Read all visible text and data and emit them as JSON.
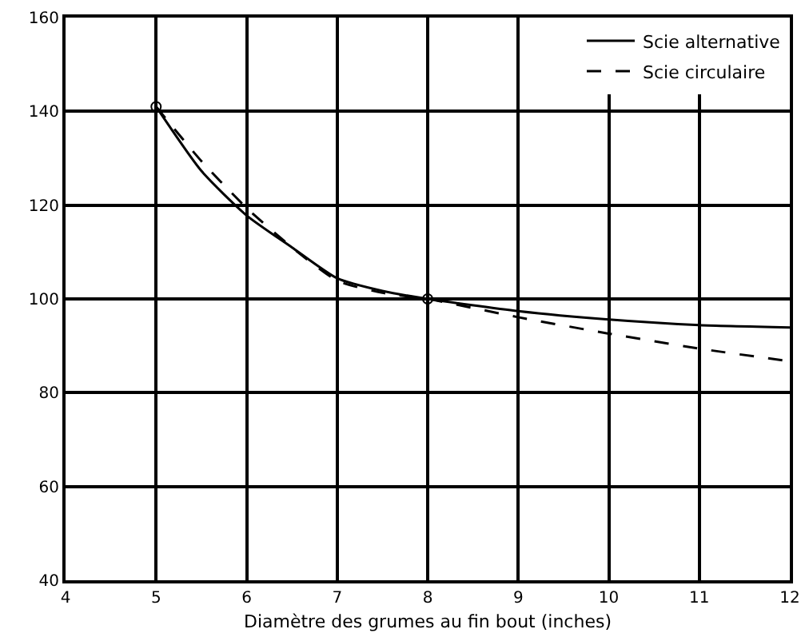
{
  "chart_data": {
    "type": "line",
    "xlabel": "Diamètre des grumes au fin bout (inches)",
    "xlim": [
      4,
      12
    ],
    "xticks": [
      4,
      5,
      6,
      7,
      8,
      9,
      10,
      11,
      12
    ],
    "ylim": [
      40,
      160
    ],
    "yticks": [
      40,
      60,
      80,
      100,
      120,
      140,
      160
    ],
    "grid": true,
    "legend": "top right",
    "series": [
      {
        "name": "Scie alternative",
        "color": "#000000",
        "line_style": "solid",
        "x": [
          5,
          5.5,
          6,
          6.5,
          7,
          7.5,
          8,
          9,
          10,
          11,
          12
        ],
        "values": [
          141,
          127.3,
          117.8,
          111,
          104.4,
          101.7,
          100,
          97.4,
          95.6,
          94.4,
          93.9
        ]
      },
      {
        "name": "Scie circulaire",
        "color": "#000000",
        "line_style": "dashed",
        "x": [
          5,
          5.5,
          6,
          6.5,
          7,
          7.5,
          8,
          9,
          10,
          11,
          12
        ],
        "values": [
          141,
          129.4,
          119.4,
          111,
          103.9,
          101.3,
          100,
          96.1,
          92.6,
          89.4,
          86.7
        ]
      },
      {
        "type": "scatter",
        "color": "#000000",
        "marker": "circle",
        "x": [
          5,
          8
        ],
        "values": [
          141,
          100
        ]
      }
    ]
  }
}
